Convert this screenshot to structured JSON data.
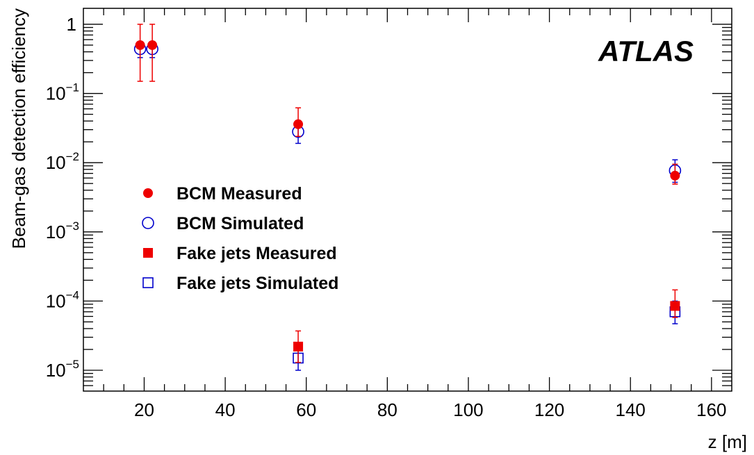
{
  "chart_data": {
    "type": "scatter",
    "title": "",
    "xlabel": "z [m]",
    "ylabel": "Beam-gas detection efficiency",
    "xlim": [
      5,
      165
    ],
    "ylim": [
      5e-06,
      1.7
    ],
    "yscale": "log",
    "grid": false,
    "legend_position": "center-left",
    "annotation": "ATLAS",
    "x_ticks": [
      "20",
      "40",
      "60",
      "80",
      "100",
      "120",
      "140",
      "160"
    ],
    "y_ticks": [
      {
        "base": "1",
        "exp": ""
      },
      {
        "base": "10",
        "exp": "−1"
      },
      {
        "base": "10",
        "exp": "−2"
      },
      {
        "base": "10",
        "exp": "−3"
      },
      {
        "base": "10",
        "exp": "−4"
      },
      {
        "base": "10",
        "exp": "−5"
      }
    ],
    "series": [
      {
        "name": "BCM Measured",
        "marker": "filled-circle",
        "color": "#ee0000",
        "points": [
          {
            "x": 19,
            "y": 0.5,
            "ylo": 0.15,
            "yhi": 1.0
          },
          {
            "x": 22,
            "y": 0.5,
            "ylo": 0.15,
            "yhi": 1.0
          },
          {
            "x": 58,
            "y": 0.036,
            "ylo": 0.024,
            "yhi": 0.062
          },
          {
            "x": 151,
            "y": 0.0065,
            "ylo": 0.0049,
            "yhi": 0.0095
          }
        ]
      },
      {
        "name": "BCM Simulated",
        "marker": "open-circle",
        "color": "#0000cc",
        "points": [
          {
            "x": 19,
            "y": 0.44,
            "ylo": 0.33,
            "yhi": 0.55
          },
          {
            "x": 22,
            "y": 0.44,
            "ylo": 0.33,
            "yhi": 0.55
          },
          {
            "x": 58,
            "y": 0.028,
            "ylo": 0.019,
            "yhi": 0.037
          },
          {
            "x": 151,
            "y": 0.0077,
            "ylo": 0.0052,
            "yhi": 0.011
          }
        ]
      },
      {
        "name": "Fake jets Measured",
        "marker": "filled-square",
        "color": "#ee0000",
        "points": [
          {
            "x": 58,
            "y": 2.2e-05,
            "ylo": 1.3e-05,
            "yhi": 3.7e-05
          },
          {
            "x": 151,
            "y": 8.5e-05,
            "ylo": 5.8e-05,
            "yhi": 0.000145
          }
        ]
      },
      {
        "name": "Fake jets Simulated",
        "marker": "open-square",
        "color": "#0000cc",
        "points": [
          {
            "x": 58,
            "y": 1.5e-05,
            "ylo": 1e-05,
            "yhi": 2.1e-05
          },
          {
            "x": 151,
            "y": 7e-05,
            "ylo": 4.7e-05,
            "yhi": 0.0001
          }
        ]
      }
    ]
  }
}
